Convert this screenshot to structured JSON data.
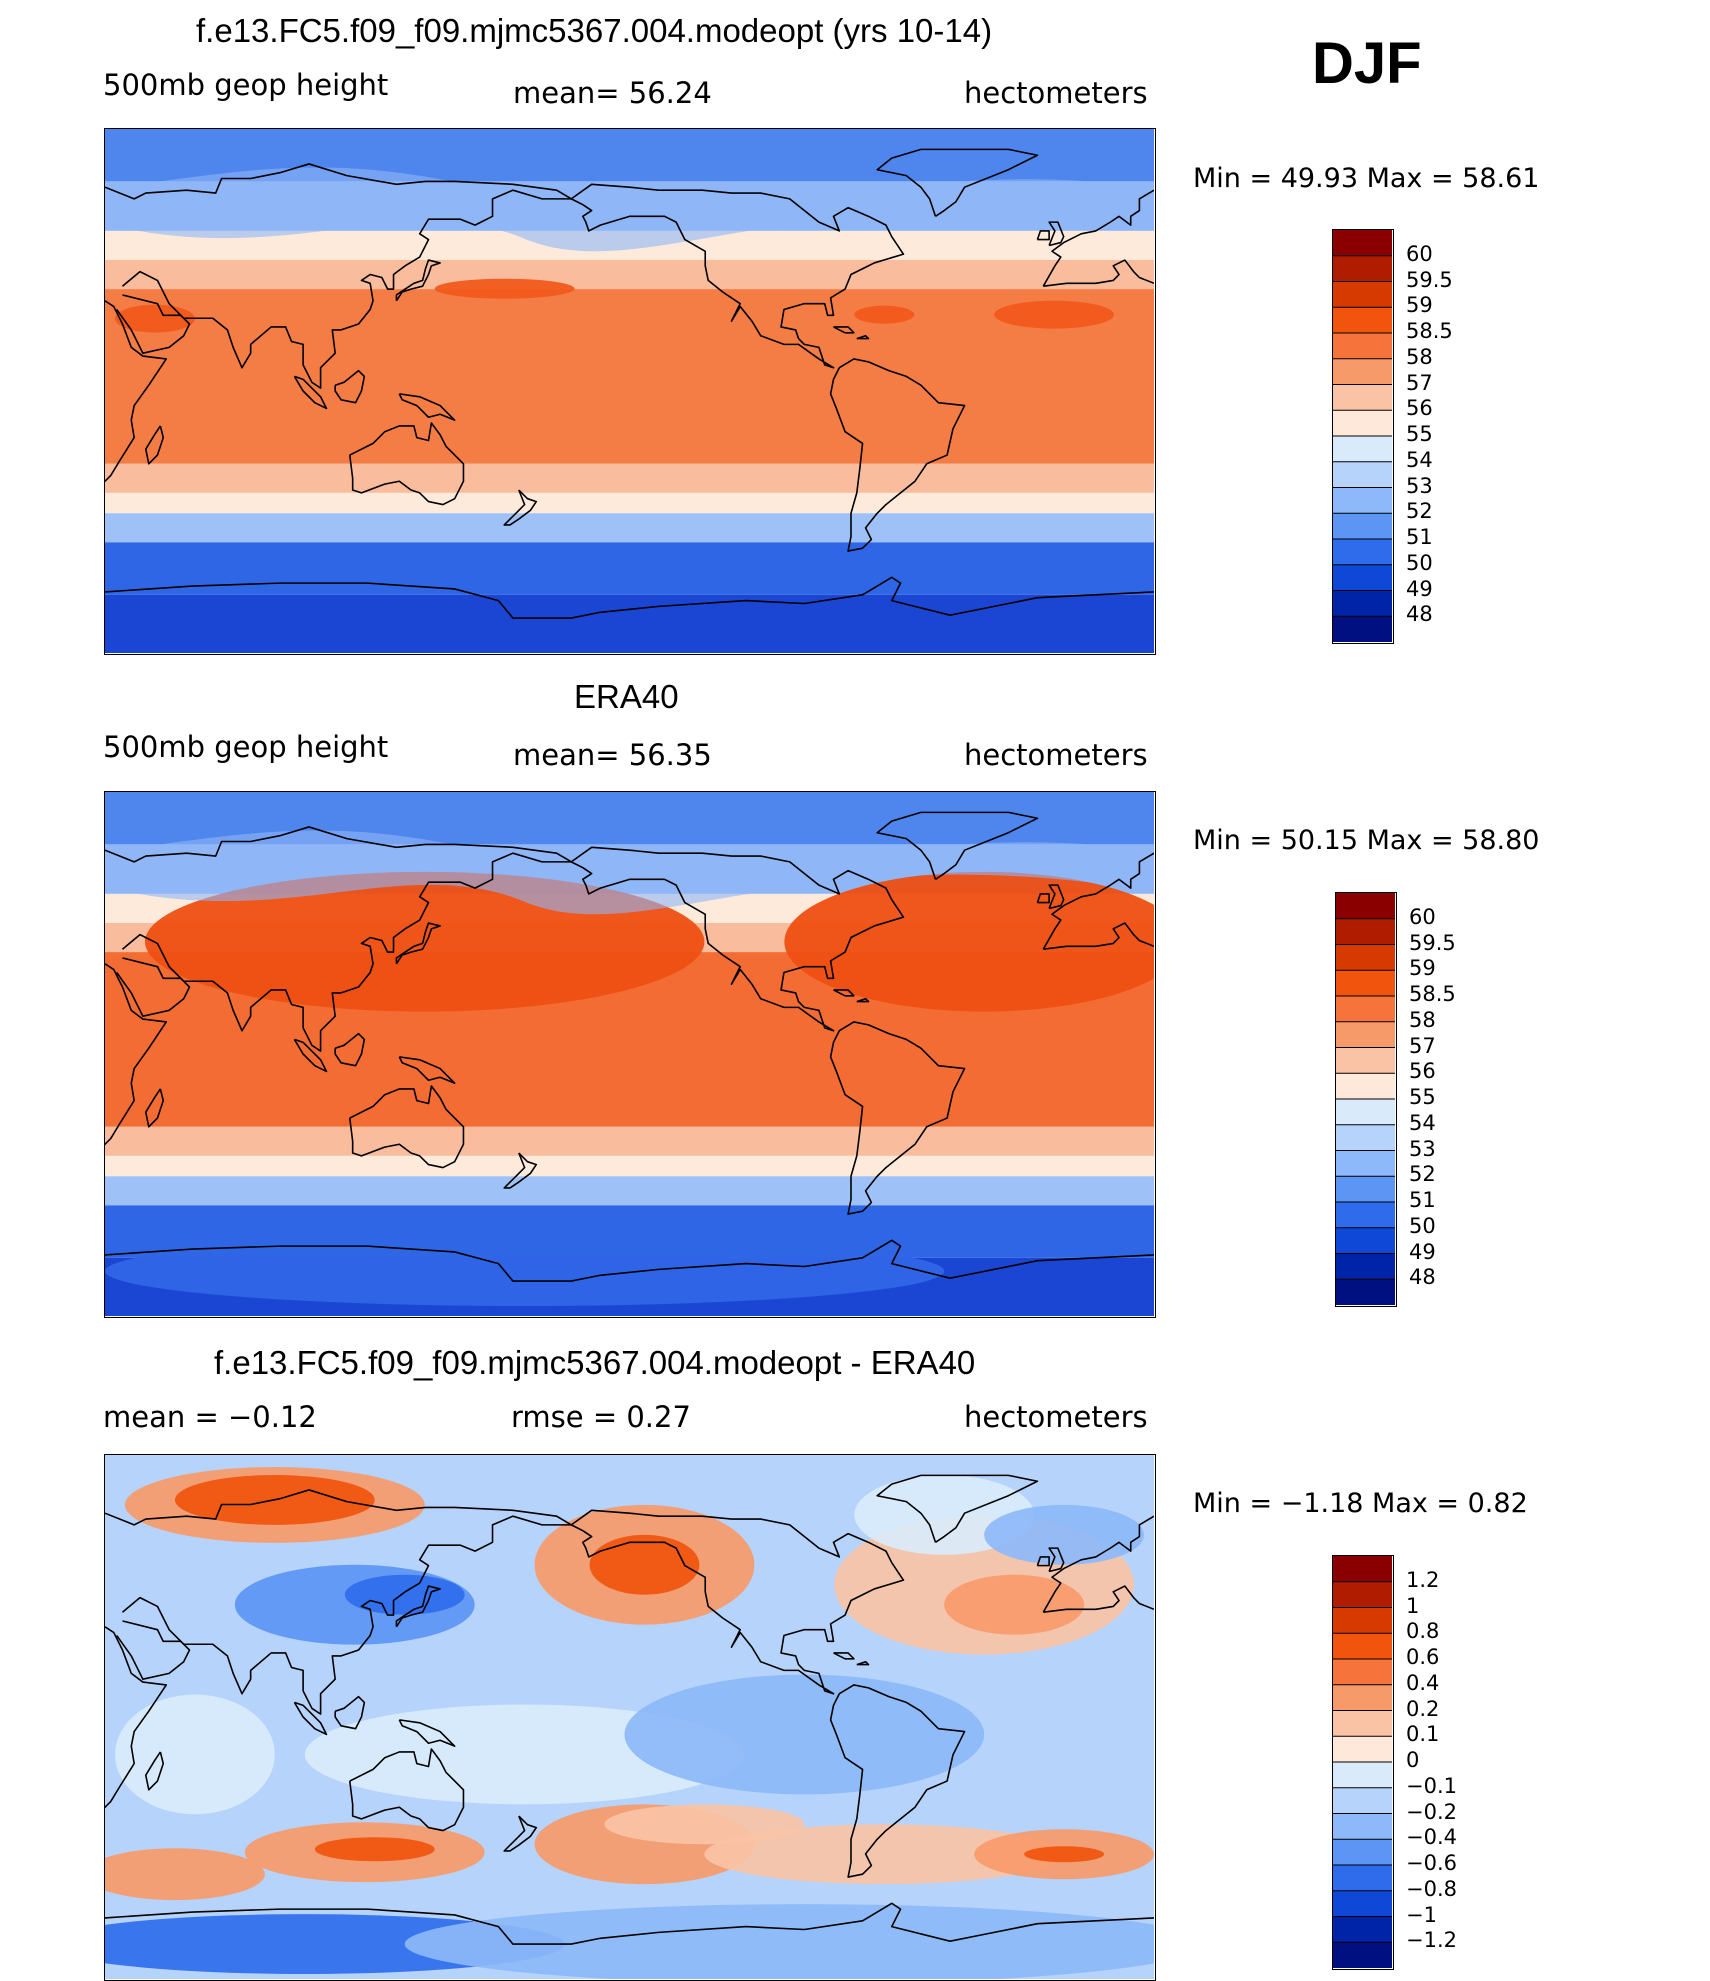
{
  "season": "DJF",
  "panels": [
    {
      "title": "f.e13.FC5.f09_f09.mjmc5367.004.modeopt (yrs 10-14)",
      "left_label": "500mb  geop  height",
      "center_label": "mean=   56.24",
      "right_label": "hectometers",
      "minmax": "Min  =    49.93  Max  =    58.61",
      "levels": [
        "60",
        "59.5",
        "59",
        "58.5",
        "58",
        "57",
        "56",
        "55",
        "54",
        "53",
        "52",
        "51",
        "50",
        "49",
        "48"
      ],
      "colors": [
        "#8a0000",
        "#b01c00",
        "#d63a00",
        "#f0540d",
        "#f6733c",
        "#f79a6a",
        "#fac3a6",
        "#fde8da",
        "#d9ebfb",
        "#b6d3fb",
        "#8db8f9",
        "#5c95f4",
        "#2f6cec",
        "#0f47d6",
        "#0024a7",
        "#001080"
      ],
      "map_palette": {
        "npole": "#4f86ee",
        "midn": "#8fb6f7",
        "edge": "#fdeadb",
        "sub": "#f9bc9d",
        "trop": "#f47c45",
        "trop_core": "#f15a1b",
        "sub_s": "#f9bc9d",
        "mids": "#9ec2f8",
        "spole": "#2f66e6",
        "antarctic": "#1a46d3"
      }
    },
    {
      "title": "ERA40",
      "left_label": "500mb  geop  height",
      "center_label": "mean=   56.35",
      "right_label": "hectometers",
      "minmax": "Min  =    50.15  Max  =    58.80",
      "levels": [
        "60",
        "59.5",
        "59",
        "58.5",
        "58",
        "57",
        "56",
        "55",
        "54",
        "53",
        "52",
        "51",
        "50",
        "49",
        "48"
      ],
      "colors": [
        "#8a0000",
        "#b01c00",
        "#d63a00",
        "#f0540d",
        "#f6733c",
        "#f79a6a",
        "#fac3a6",
        "#fde8da",
        "#d9ebfb",
        "#b6d3fb",
        "#8db8f9",
        "#5c95f4",
        "#2f6cec",
        "#0f47d6",
        "#0024a7",
        "#001080"
      ],
      "map_palette": {
        "npole": "#4f86ee",
        "midn": "#8fb6f7",
        "edge": "#fdeadb",
        "sub": "#f9bc9d",
        "trop": "#f36c33",
        "trop_core": "#ee4f12",
        "sub_s": "#f9bc9d",
        "mids": "#9ec2f8",
        "spole": "#2f66e6",
        "antarctic": "#1a46d3"
      }
    },
    {
      "title": "f.e13.FC5.f09_f09.mjmc5367.004.modeopt - ERA40",
      "left_label": "mean  =    −0.12",
      "center_label": "rmse  =     0.27",
      "right_label": "hectometers",
      "minmax": "Min  =    −1.18  Max  =      0.82",
      "levels": [
        "1.2",
        "1",
        "0.8",
        "0.6",
        "0.4",
        "0.2",
        "0.1",
        "0",
        "−0.1",
        "−0.2",
        "−0.4",
        "−0.6",
        "−0.8",
        "−1",
        "−1.2"
      ],
      "colors": [
        "#8a0000",
        "#b01c00",
        "#d63a00",
        "#f0540d",
        "#f6733c",
        "#f79a6a",
        "#fac3a6",
        "#fde8da",
        "#d9ebfb",
        "#b6d3fb",
        "#8db8f9",
        "#5c95f4",
        "#2f6cec",
        "#0f47d6",
        "#0024a7",
        "#001080"
      ],
      "map_palette": {
        "base": "#b6d3fb",
        "light": "#d9ebfb",
        "mid": "#8db8f9",
        "dark": "#5c95f4",
        "pos": "#f79a6a",
        "pos_light": "#fac3a6",
        "pos_strong": "#f0540d",
        "deep": "#2f6cec",
        "deepest": "#0f47d6"
      }
    }
  ]
}
